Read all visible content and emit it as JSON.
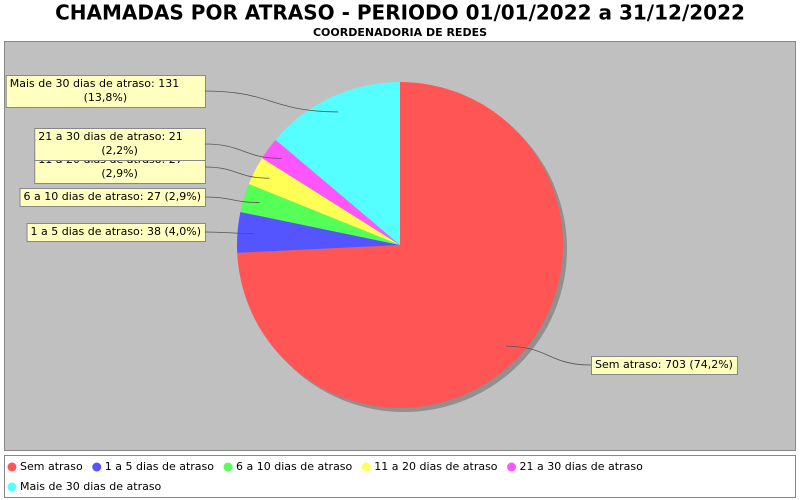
{
  "chart_data": {
    "type": "pie",
    "title": "CHAMADAS POR ATRASO - PERIODO 01/01/2022 a 31/12/2022",
    "subtitle": "COORDENADORIA DE REDES",
    "categories": [
      "Sem atraso",
      "1 a 5 dias de atraso",
      "6 a 10 dias de atraso",
      "11 a 20 dias de atraso",
      "21 a 30 dias de atraso",
      "Mais de 30 dias de atraso"
    ],
    "values": [
      703,
      38,
      27,
      27,
      21,
      131
    ],
    "value_labels": [
      "Sem atraso: 703 (74,2%)",
      "1 a 5 dias de atraso: 38 (4,0%)",
      "6 a 10 dias de atraso: 27 (2,9%)",
      "11 a 20 dias de atraso: 27 (2,9%)",
      "21 a 30 dias de atraso: 21 (2,2%)",
      "Mais de 30 dias de atraso: 131 (13,8%)"
    ],
    "colors": [
      "#ff5555",
      "#5555ff",
      "#55ff55",
      "#ffff55",
      "#ff55ff",
      "#55ffff"
    ],
    "legend": "bottom"
  }
}
